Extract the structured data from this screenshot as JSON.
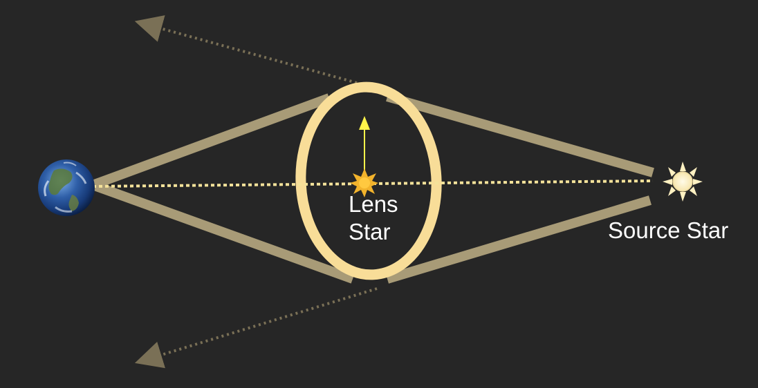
{
  "diagram": {
    "labels": {
      "lens_line1": "Lens",
      "lens_line2": "Star",
      "source": "Source Star"
    },
    "objects": {
      "observer_icon": "earth-icon",
      "lens_icon": "lens-star-icon",
      "source_icon": "sun-icon"
    },
    "colors": {
      "background": "#262626",
      "light_path": "#a89b77",
      "einstein_ring": "#f8dd98",
      "line_of_sight": "#f4e29a",
      "deflection_arrow": "#fff44a",
      "lens_star": "#f2b32c",
      "source_star": "#fff1c2",
      "undeflected_ray": "#7a7056"
    }
  }
}
